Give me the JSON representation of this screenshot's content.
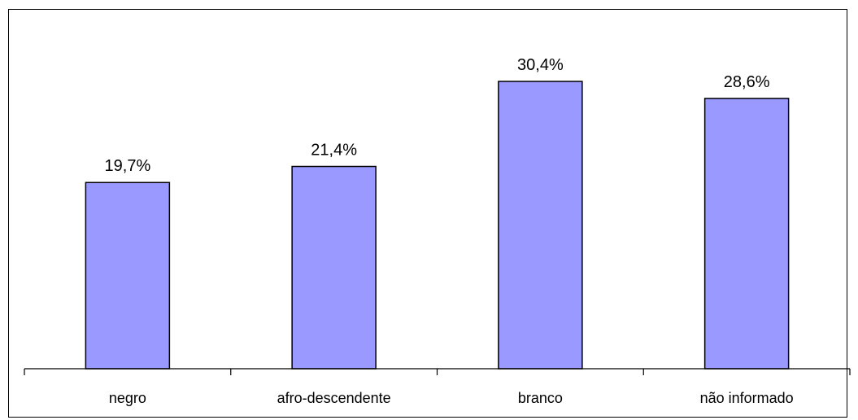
{
  "chart_data": {
    "type": "bar",
    "categories": [
      "negro",
      "afro-descendente",
      "branco",
      "não informado"
    ],
    "values": [
      19.7,
      21.4,
      30.4,
      28.6
    ],
    "data_labels": [
      "19,7%",
      "21,4%",
      "30,4%",
      "28,6%"
    ],
    "title": "",
    "xlabel": "",
    "ylabel": "",
    "ylim": [
      0,
      35
    ],
    "unit": "%",
    "grid": false,
    "legend": "none",
    "bar_color": "#9999FF",
    "bar_border_color": "#000000"
  }
}
